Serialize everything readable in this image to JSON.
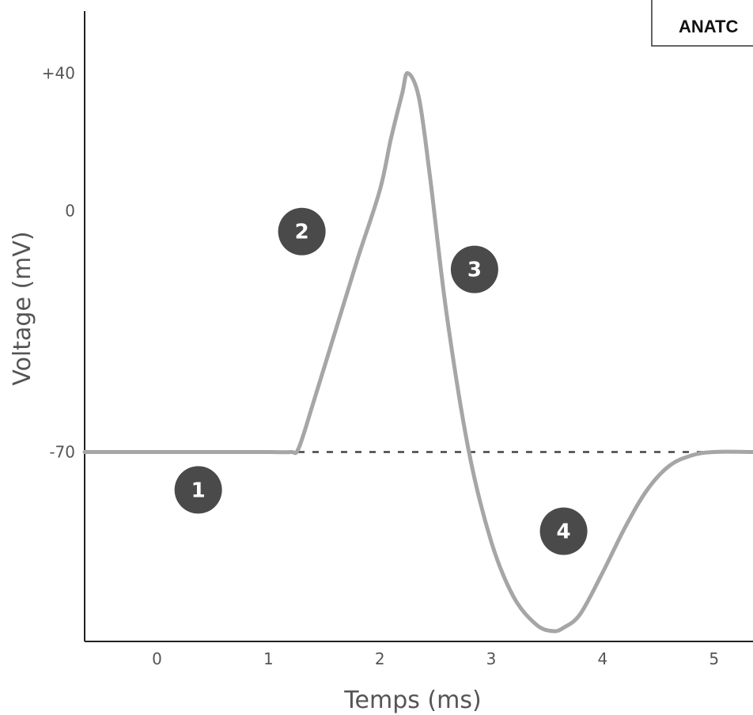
{
  "corner_label": "ANATC",
  "chart_data": {
    "type": "line",
    "xlabel": "Temps (ms)",
    "ylabel": "Voltage (mV)",
    "x_ticks": [
      "0",
      "1",
      "2",
      "3",
      "4",
      "5"
    ],
    "y_ticks": [
      {
        "value": 40,
        "label": "+40"
      },
      {
        "value": 0,
        "label": "0"
      },
      {
        "value": -70,
        "label": "-70"
      }
    ],
    "xlim": [
      -0.65,
      5.35
    ],
    "ylim": [
      -125,
      58
    ],
    "resting_potential": -70,
    "series": [
      {
        "color": "#a6a6a6",
        "x": [
          -0.65,
          0.2,
          0.6,
          1.0,
          1.2,
          1.27,
          1.4,
          1.6,
          1.8,
          2.0,
          2.1,
          2.2,
          2.25,
          2.35,
          2.45,
          2.6,
          2.8,
          3.0,
          3.2,
          3.4,
          3.55,
          3.65,
          3.8,
          4.0,
          4.2,
          4.4,
          4.6,
          4.8,
          5.0,
          5.35
        ],
        "y": [
          -70,
          -70,
          -70,
          -70,
          -70,
          -69,
          -56,
          -35,
          -14,
          6,
          21,
          34,
          40,
          33,
          10,
          -30,
          -70,
          -96,
          -112,
          -120,
          -122,
          -121,
          -117,
          -105,
          -92,
          -81,
          -74,
          -71,
          -70,
          -70
        ]
      }
    ],
    "annotations": [
      {
        "label": "1",
        "x": 0.37,
        "y": -81
      },
      {
        "label": "2",
        "x": 1.3,
        "y": -6
      },
      {
        "label": "3",
        "x": 2.85,
        "y": -17
      },
      {
        "label": "4",
        "x": 3.65,
        "y": -93
      }
    ],
    "grid": false
  }
}
